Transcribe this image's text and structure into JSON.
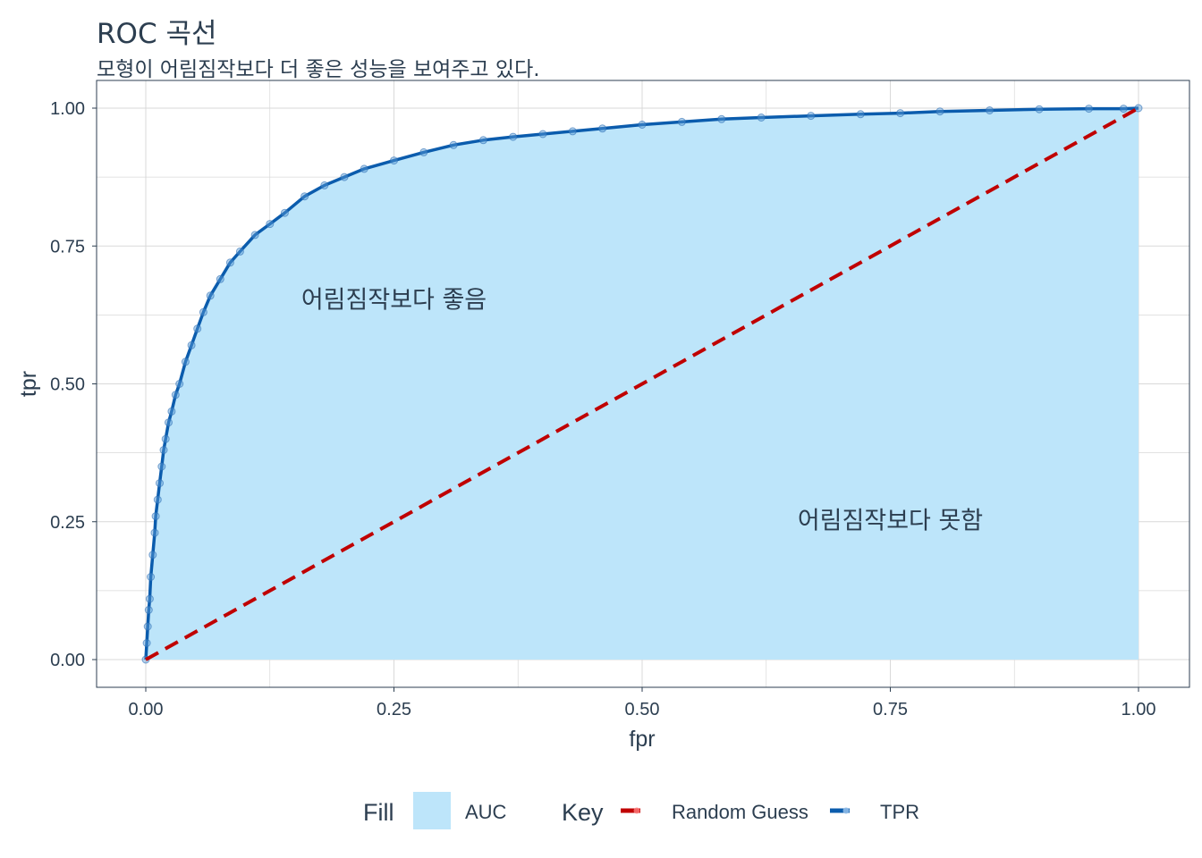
{
  "chart_data": {
    "type": "line",
    "title": "ROC 곡선",
    "subtitle": "모형이 어림짐작보다 더 좋은 성능을 보여주고 있다.",
    "xlabel": "fpr",
    "ylabel": "tpr",
    "xlim": [
      0,
      1
    ],
    "ylim": [
      0,
      1
    ],
    "x_ticks": [
      "0.00",
      "0.25",
      "0.50",
      "0.75",
      "1.00"
    ],
    "y_ticks": [
      "0.00",
      "0.25",
      "0.50",
      "0.75",
      "1.00"
    ],
    "grid": true,
    "legend_position": "bottom",
    "series": [
      {
        "name": "TPR",
        "kind": "line+points",
        "color": "#0b5cad",
        "points": [
          [
            0.0,
            0.0
          ],
          [
            0.001,
            0.03
          ],
          [
            0.002,
            0.06
          ],
          [
            0.003,
            0.09
          ],
          [
            0.004,
            0.11
          ],
          [
            0.005,
            0.15
          ],
          [
            0.007,
            0.19
          ],
          [
            0.009,
            0.23
          ],
          [
            0.01,
            0.26
          ],
          [
            0.012,
            0.29
          ],
          [
            0.014,
            0.32
          ],
          [
            0.016,
            0.35
          ],
          [
            0.018,
            0.38
          ],
          [
            0.02,
            0.4
          ],
          [
            0.023,
            0.43
          ],
          [
            0.026,
            0.45
          ],
          [
            0.03,
            0.48
          ],
          [
            0.034,
            0.5
          ],
          [
            0.04,
            0.54
          ],
          [
            0.046,
            0.57
          ],
          [
            0.052,
            0.6
          ],
          [
            0.058,
            0.63
          ],
          [
            0.065,
            0.66
          ],
          [
            0.075,
            0.69
          ],
          [
            0.085,
            0.72
          ],
          [
            0.095,
            0.74
          ],
          [
            0.11,
            0.77
          ],
          [
            0.125,
            0.79
          ],
          [
            0.14,
            0.81
          ],
          [
            0.16,
            0.84
          ],
          [
            0.18,
            0.86
          ],
          [
            0.2,
            0.875
          ],
          [
            0.22,
            0.89
          ],
          [
            0.25,
            0.905
          ],
          [
            0.28,
            0.92
          ],
          [
            0.31,
            0.933
          ],
          [
            0.34,
            0.942
          ],
          [
            0.37,
            0.948
          ],
          [
            0.4,
            0.953
          ],
          [
            0.43,
            0.958
          ],
          [
            0.46,
            0.963
          ],
          [
            0.5,
            0.97
          ],
          [
            0.54,
            0.975
          ],
          [
            0.58,
            0.98
          ],
          [
            0.62,
            0.983
          ],
          [
            0.67,
            0.986
          ],
          [
            0.72,
            0.989
          ],
          [
            0.76,
            0.991
          ],
          [
            0.8,
            0.994
          ],
          [
            0.85,
            0.996
          ],
          [
            0.9,
            0.998
          ],
          [
            0.95,
            0.999
          ],
          [
            0.985,
            0.999
          ],
          [
            1.0,
            1.0
          ]
        ]
      },
      {
        "name": "Random Guess",
        "kind": "dashed-line",
        "color": "#c00000",
        "points": [
          [
            0,
            0
          ],
          [
            1,
            1
          ]
        ]
      }
    ],
    "area": {
      "name": "AUC",
      "color": "#bde5fa"
    },
    "annotations": [
      {
        "text": "어림짐작보다 좋음",
        "x": 0.25,
        "y": 0.65
      },
      {
        "text": "어림짐작보다 못함",
        "x": 0.75,
        "y": 0.25
      }
    ],
    "legend": {
      "fill_title": "Fill",
      "fill_items": [
        "AUC"
      ],
      "key_title": "Key",
      "key_items": [
        "Random Guess",
        "TPR"
      ]
    }
  }
}
